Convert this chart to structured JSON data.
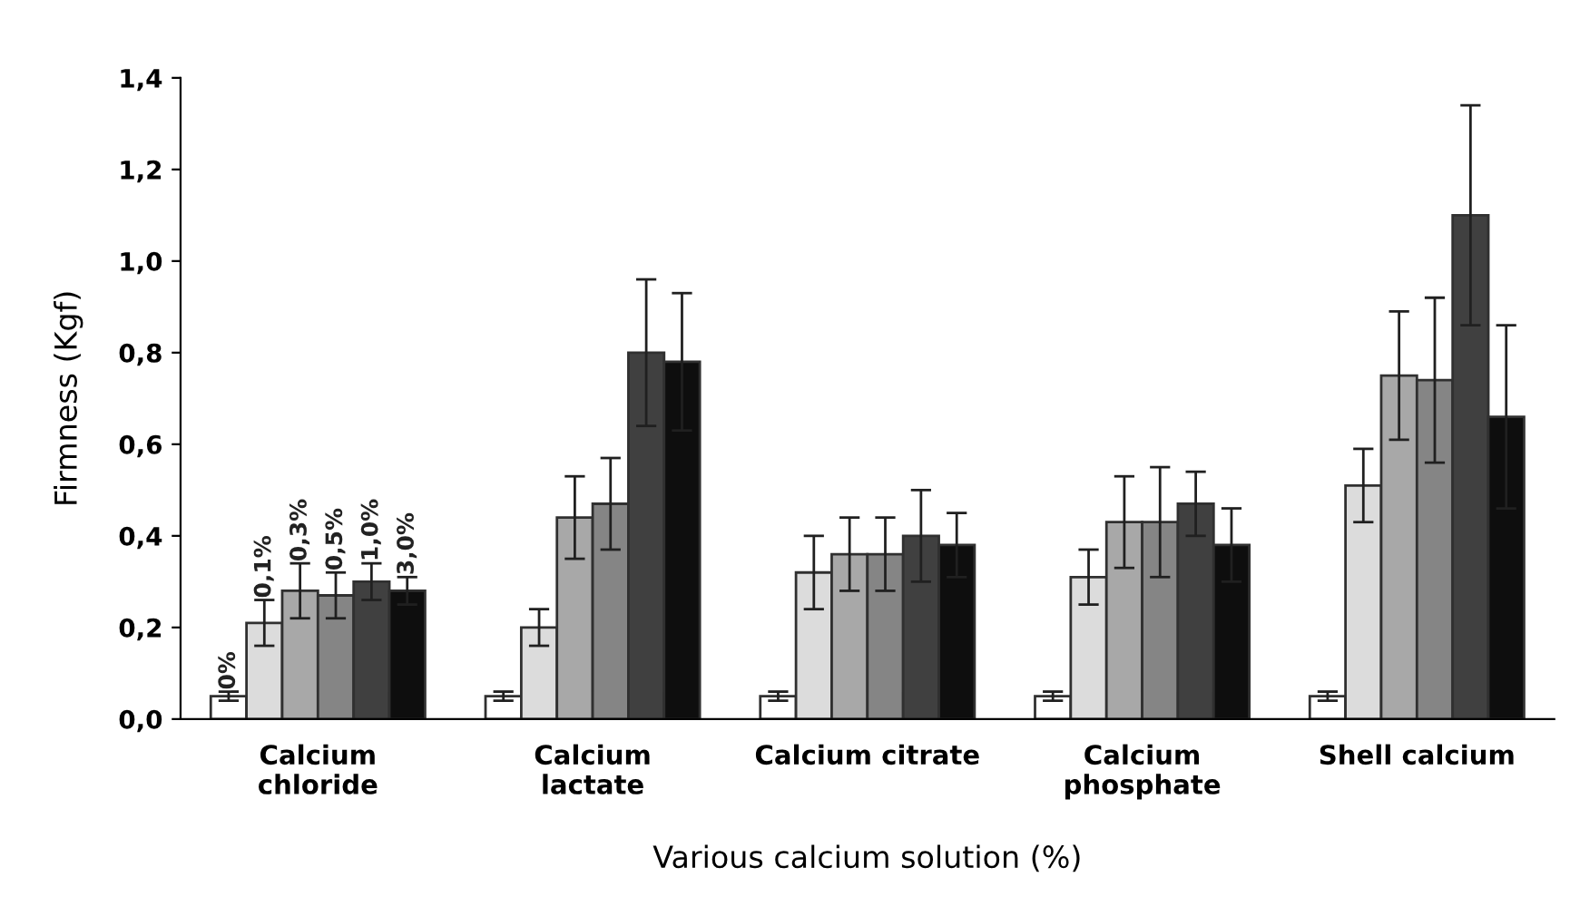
{
  "chart_data": {
    "type": "bar",
    "xlabel": "Various calcium solution (%)",
    "ylabel": "Firmness (Kgf)",
    "categories": [
      "Calcium\nchloride",
      "Calcium\nlactate",
      "Calcium citrate",
      "Calcium\nphosphate",
      "Shell calcium"
    ],
    "series": [
      {
        "name": "0%",
        "color": "#ffffff",
        "values": [
          0.05,
          0.05,
          0.05,
          0.05,
          0.05
        ],
        "errors": [
          0.01,
          0.01,
          0.01,
          0.01,
          0.01
        ]
      },
      {
        "name": "0,1%",
        "color": "#dcdcdc",
        "values": [
          0.21,
          0.2,
          0.32,
          0.31,
          0.51
        ],
        "errors": [
          0.05,
          0.04,
          0.08,
          0.06,
          0.08
        ]
      },
      {
        "name": "0,3%",
        "color": "#a8a8a8",
        "values": [
          0.28,
          0.44,
          0.36,
          0.43,
          0.75
        ],
        "errors": [
          0.06,
          0.09,
          0.08,
          0.1,
          0.14
        ]
      },
      {
        "name": "0,5%",
        "color": "#858585",
        "values": [
          0.27,
          0.47,
          0.36,
          0.43,
          0.74
        ],
        "errors": [
          0.05,
          0.1,
          0.08,
          0.12,
          0.18
        ]
      },
      {
        "name": "1,0%",
        "color": "#404040",
        "values": [
          0.3,
          0.8,
          0.4,
          0.47,
          1.1
        ],
        "errors": [
          0.04,
          0.16,
          0.1,
          0.07,
          0.24
        ]
      },
      {
        "name": "3,0%",
        "color": "#0e0e0e",
        "values": [
          0.28,
          0.78,
          0.38,
          0.38,
          0.66
        ],
        "errors": [
          0.03,
          0.15,
          0.07,
          0.08,
          0.2
        ]
      }
    ],
    "ylim": [
      0,
      1.4
    ],
    "yticks": [
      {
        "value": 0,
        "label": "0,0"
      },
      {
        "value": 0.2,
        "label": "0,2"
      },
      {
        "value": 0.4,
        "label": "0,4"
      },
      {
        "value": 0.6,
        "label": "0,6"
      },
      {
        "value": 0.8,
        "label": "0,8"
      },
      {
        "value": 1.0,
        "label": "1,0"
      },
      {
        "value": 1.2,
        "label": "1,2"
      },
      {
        "value": 1.4,
        "label": "1,4"
      }
    ],
    "grid": false,
    "legend": false
  }
}
